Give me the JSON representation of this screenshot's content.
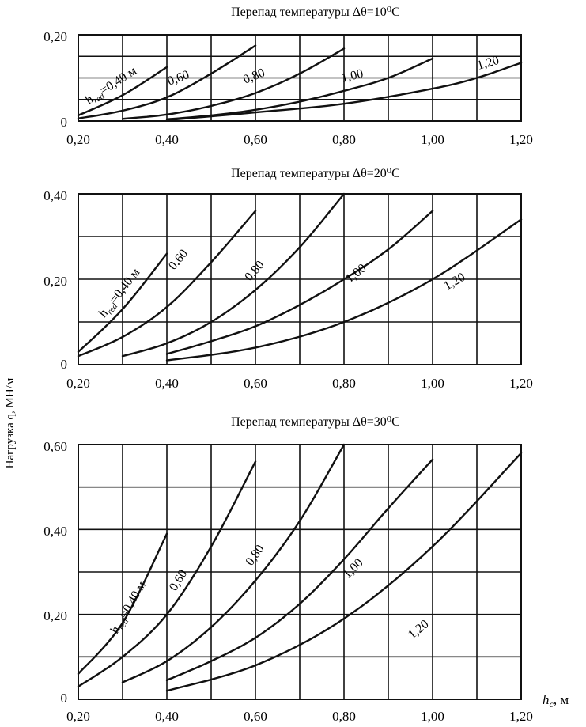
{
  "y_axis_label": "Нагрузка q, МН/м",
  "x_axis_label": "h",
  "x_axis_label_sub": "c",
  "x_axis_label_unit": ", м",
  "colors": {
    "ink": "#111111",
    "background": "#ffffff"
  },
  "chart_data": [
    {
      "type": "line",
      "title": "Перепад температуры Δθ=10⁰С",
      "xlabel": "",
      "ylabel": "",
      "xlim": [
        0.2,
        1.2
      ],
      "ylim": [
        0,
        0.2
      ],
      "x_ticks": [
        0.2,
        0.3,
        0.4,
        0.5,
        0.6,
        0.7,
        0.8,
        0.9,
        1.0,
        1.1,
        1.2
      ],
      "x_tick_labels": [
        "0,20",
        "0,40",
        "0,60",
        "0,80",
        "1,00",
        "1,20"
      ],
      "y_ticks": [
        0,
        0.05,
        0.1,
        0.15,
        0.2
      ],
      "y_tick_labels": [
        "0",
        "0,20"
      ],
      "grid": true,
      "series": [
        {
          "label": "h_red=0,40 м",
          "x": [
            0.2,
            0.3,
            0.4
          ],
          "y": [
            0.013,
            0.06,
            0.125
          ]
        },
        {
          "label": "0,60",
          "x": [
            0.2,
            0.3,
            0.4,
            0.5,
            0.6
          ],
          "y": [
            0.006,
            0.024,
            0.055,
            0.11,
            0.175
          ]
        },
        {
          "label": "0,80",
          "x": [
            0.3,
            0.4,
            0.5,
            0.6,
            0.7,
            0.8
          ],
          "y": [
            0.005,
            0.015,
            0.035,
            0.065,
            0.11,
            0.168
          ]
        },
        {
          "label": "1,00",
          "x": [
            0.4,
            0.5,
            0.6,
            0.7,
            0.8,
            0.9,
            1.0
          ],
          "y": [
            0.004,
            0.013,
            0.026,
            0.045,
            0.07,
            0.1,
            0.145
          ]
        },
        {
          "label": "1,20",
          "x": [
            0.4,
            0.6,
            0.8,
            1.0,
            1.1,
            1.2
          ],
          "y": [
            0.002,
            0.02,
            0.04,
            0.075,
            0.1,
            0.135
          ]
        }
      ],
      "curve_labels": [
        "h",
        "red",
        "=0,40 м",
        "0,60",
        "0,80",
        "1,00",
        "1,20"
      ]
    },
    {
      "type": "line",
      "title": "Перепад температуры Δθ=20⁰С",
      "xlabel": "",
      "ylabel": "",
      "xlim": [
        0.2,
        1.2
      ],
      "ylim": [
        0,
        0.4
      ],
      "x_ticks": [
        0.2,
        0.3,
        0.4,
        0.5,
        0.6,
        0.7,
        0.8,
        0.9,
        1.0,
        1.1,
        1.2
      ],
      "x_tick_labels": [
        "0,20",
        "0,40",
        "0,60",
        "0,80",
        "1,00",
        "1,20"
      ],
      "y_ticks": [
        0,
        0.1,
        0.2,
        0.3,
        0.4
      ],
      "y_tick_labels": [
        "0",
        "0,20",
        "0,40"
      ],
      "grid": true,
      "series": [
        {
          "label": "h_red=0,40 м",
          "x": [
            0.2,
            0.3,
            0.4
          ],
          "y": [
            0.03,
            0.13,
            0.26
          ]
        },
        {
          "label": "0,60",
          "x": [
            0.2,
            0.3,
            0.4,
            0.5,
            0.6
          ],
          "y": [
            0.02,
            0.065,
            0.135,
            0.24,
            0.36
          ]
        },
        {
          "label": "0,80",
          "x": [
            0.3,
            0.4,
            0.5,
            0.6,
            0.7,
            0.8
          ],
          "y": [
            0.02,
            0.05,
            0.1,
            0.175,
            0.275,
            0.4
          ]
        },
        {
          "label": "1,00",
          "x": [
            0.4,
            0.5,
            0.6,
            0.7,
            0.8,
            0.9,
            1.0
          ],
          "y": [
            0.025,
            0.055,
            0.09,
            0.14,
            0.2,
            0.27,
            0.36
          ]
        },
        {
          "label": "1,20",
          "x": [
            0.4,
            0.6,
            0.8,
            1.0,
            1.2
          ],
          "y": [
            0.01,
            0.04,
            0.1,
            0.2,
            0.34
          ]
        }
      ],
      "curve_labels": [
        "h",
        "red",
        "=0,40 м",
        "0,60",
        "0,80",
        "1,00",
        "1,20"
      ]
    },
    {
      "type": "line",
      "title": "Перепад температуры Δθ=30⁰С",
      "xlabel": "",
      "ylabel": "",
      "xlim": [
        0.2,
        1.2
      ],
      "ylim": [
        0,
        0.6
      ],
      "x_ticks": [
        0.2,
        0.3,
        0.4,
        0.5,
        0.6,
        0.7,
        0.8,
        0.9,
        1.0,
        1.1,
        1.2
      ],
      "x_tick_labels": [
        "0,20",
        "0,40",
        "0,60",
        "0,80",
        "1,00",
        "1,20"
      ],
      "y_ticks": [
        0,
        0.1,
        0.2,
        0.3,
        0.4,
        0.5,
        0.6
      ],
      "y_tick_labels": [
        "0",
        "0,20",
        "0,40",
        "0,60"
      ],
      "grid": true,
      "series": [
        {
          "label": "h_red=0,40 м",
          "x": [
            0.2,
            0.3,
            0.4
          ],
          "y": [
            0.06,
            0.18,
            0.39
          ]
        },
        {
          "label": "0,60",
          "x": [
            0.2,
            0.3,
            0.4,
            0.5,
            0.6
          ],
          "y": [
            0.03,
            0.1,
            0.2,
            0.36,
            0.56
          ]
        },
        {
          "label": "0,80",
          "x": [
            0.3,
            0.4,
            0.5,
            0.6,
            0.7,
            0.8
          ],
          "y": [
            0.04,
            0.09,
            0.17,
            0.28,
            0.42,
            0.6
          ]
        },
        {
          "label": "1,00",
          "x": [
            0.4,
            0.5,
            0.6,
            0.7,
            0.8,
            0.9,
            1.0
          ],
          "y": [
            0.045,
            0.09,
            0.145,
            0.225,
            0.33,
            0.45,
            0.565
          ]
        },
        {
          "label": "1,20",
          "x": [
            0.4,
            0.6,
            0.8,
            1.0,
            1.2
          ],
          "y": [
            0.02,
            0.08,
            0.19,
            0.36,
            0.58
          ]
        }
      ],
      "curve_labels": [
        "h",
        "red",
        "=0,40 м",
        "0,60",
        "0,80",
        "1,00",
        "1,20"
      ]
    }
  ]
}
